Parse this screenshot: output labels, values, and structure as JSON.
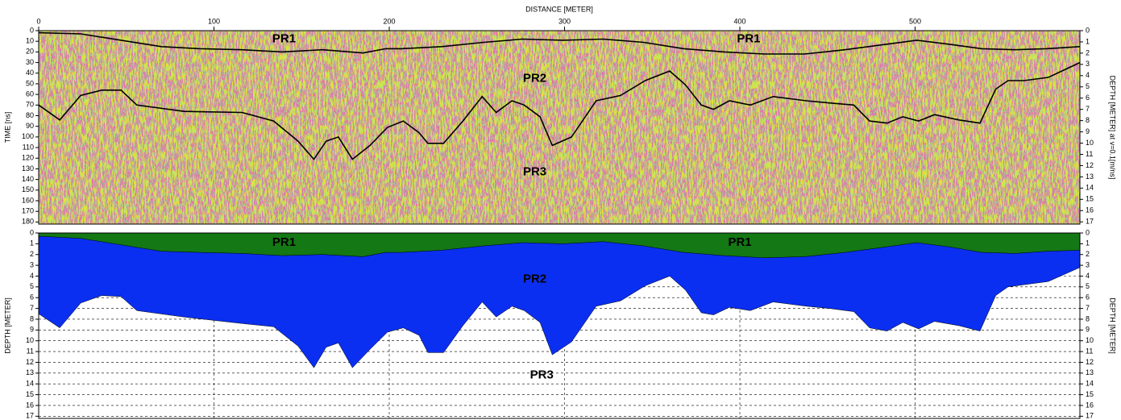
{
  "chart_data": [
    {
      "type": "line",
      "xlabel": "DISTANCE [METER]",
      "ylabel": "TIME [ns]",
      "y2label": "DEPTH [METER] at v=0.1[m/ns]",
      "xlim": [
        0,
        594
      ],
      "xticks": [
        0,
        100,
        200,
        300,
        400,
        500
      ],
      "ylim": [
        0,
        182
      ],
      "yticks": [
        0,
        10,
        20,
        30,
        40,
        50,
        60,
        70,
        80,
        90,
        100,
        110,
        120,
        130,
        140,
        150,
        160,
        170,
        180
      ],
      "y2lim": [
        0,
        17.2
      ],
      "y2ticks": [
        0,
        1,
        2,
        3,
        4,
        5,
        6,
        7,
        8,
        9,
        10,
        11,
        12,
        13,
        14,
        15,
        16,
        17
      ],
      "series": [
        {
          "color": "#000000",
          "x": [
            0,
            24,
            47,
            70,
            92,
            116,
            139,
            162,
            185,
            198,
            207,
            230,
            254,
            276,
            299,
            322,
            345,
            368,
            391,
            414,
            437,
            460,
            483,
            501,
            520,
            538,
            557,
            575,
            594
          ],
          "values": [
            2,
            3,
            9,
            15,
            17,
            18,
            20,
            18,
            21,
            17,
            17,
            15,
            11,
            8,
            9,
            8,
            11,
            17,
            20,
            22,
            22,
            18,
            13,
            9,
            13,
            17,
            18,
            17,
            15
          ]
        },
        {
          "color": "#000000",
          "x": [
            0,
            12,
            24,
            36,
            47,
            56,
            83,
            116,
            134,
            148,
            157,
            164,
            171,
            179,
            189,
            199,
            208,
            217,
            222,
            231,
            242,
            253,
            261,
            270,
            277,
            286,
            293,
            304,
            318,
            332,
            346,
            360,
            369,
            378,
            385,
            394,
            406,
            419,
            438,
            451,
            465,
            474,
            484,
            493,
            502,
            511,
            525,
            537,
            546,
            553,
            562,
            576,
            594
          ],
          "values": [
            70,
            84,
            61,
            56,
            56,
            70,
            76,
            77,
            85,
            104,
            121,
            104,
            100,
            121,
            108,
            91,
            85,
            96,
            106,
            106,
            85,
            62,
            77,
            66,
            70,
            81,
            108,
            100,
            66,
            61,
            47,
            38,
            51,
            70,
            74,
            66,
            70,
            62,
            66,
            68,
            70,
            85,
            87,
            81,
            85,
            79,
            84,
            87,
            55,
            47,
            47,
            44,
            30
          ]
        }
      ],
      "annotations": [
        {
          "text": "PR1",
          "x": 140,
          "y": 8
        },
        {
          "text": "PR1",
          "x": 405,
          "y": 8
        },
        {
          "text": "PR2",
          "x": 283,
          "y": 45
        },
        {
          "text": "PR3",
          "x": 283,
          "y": 133
        }
      ]
    },
    {
      "type": "area",
      "ylabel": "DEPTH [METER]",
      "y2label": "DEPTH [METER]",
      "xlim": [
        0,
        594
      ],
      "xticks": [
        0,
        100,
        200,
        300,
        400,
        500
      ],
      "ylim": [
        0,
        17.2
      ],
      "yticks": [
        0,
        1,
        2,
        3,
        4,
        5,
        6,
        7,
        8,
        9,
        10,
        11,
        12,
        13,
        14,
        15,
        16,
        17
      ],
      "grid": true,
      "series": [
        {
          "color": "#0a2ff0",
          "x": [
            0,
            12,
            24,
            36,
            47,
            56,
            83,
            116,
            134,
            148,
            157,
            164,
            171,
            179,
            189,
            199,
            208,
            217,
            222,
            231,
            242,
            253,
            261,
            270,
            277,
            286,
            293,
            304,
            318,
            332,
            346,
            360,
            369,
            378,
            385,
            394,
            406,
            419,
            438,
            451,
            465,
            474,
            484,
            493,
            502,
            511,
            525,
            537,
            546,
            553,
            562,
            576,
            594
          ],
          "values": [
            7.5,
            8.8,
            6.5,
            5.8,
            5.9,
            7.2,
            7.8,
            8.4,
            8.7,
            10.5,
            12.5,
            10.6,
            10.2,
            12.5,
            10.8,
            9.2,
            8.8,
            9.5,
            11.1,
            11.1,
            8.6,
            6.4,
            7.8,
            6.8,
            7.2,
            8.3,
            11.3,
            10.1,
            6.8,
            6.3,
            4.9,
            4.0,
            5.3,
            7.4,
            7.6,
            6.9,
            7.2,
            6.4,
            6.8,
            7.0,
            7.3,
            8.8,
            9.1,
            8.3,
            8.9,
            8.2,
            8.6,
            9.1,
            5.8,
            5.0,
            4.8,
            4.5,
            3.2
          ]
        },
        {
          "color": "#147814",
          "x": [
            0,
            24,
            47,
            70,
            92,
            116,
            139,
            162,
            185,
            198,
            207,
            230,
            254,
            276,
            299,
            322,
            345,
            368,
            391,
            414,
            437,
            460,
            483,
            501,
            520,
            538,
            557,
            575,
            594
          ],
          "values": [
            0.3,
            0.5,
            1.1,
            1.7,
            1.8,
            1.9,
            2.1,
            2.0,
            2.2,
            1.8,
            1.8,
            1.6,
            1.2,
            0.9,
            1.0,
            0.8,
            1.2,
            1.8,
            2.1,
            2.3,
            2.2,
            1.8,
            1.3,
            0.9,
            1.3,
            1.8,
            1.9,
            1.7,
            1.6
          ]
        }
      ],
      "annotations": [
        {
          "text": "PR1",
          "x": 140,
          "y": 0.9
        },
        {
          "text": "PR1",
          "x": 400,
          "y": 0.9
        },
        {
          "text": "PR2",
          "x": 283,
          "y": 4.3
        },
        {
          "text": "PR3",
          "x": 287,
          "y": 13.2
        }
      ]
    }
  ]
}
